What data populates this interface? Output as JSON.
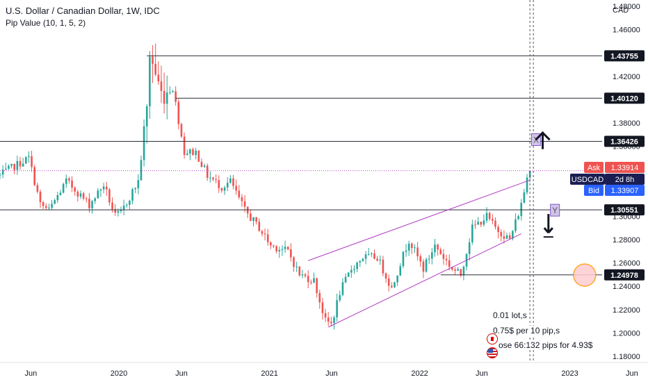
{
  "header": {
    "title": "U.S. Dollar / Canadian Dollar, 1W, IDC",
    "indicator": "Pip Value (10, 1, 5, 2)"
  },
  "currency_label": "CAD",
  "notes": {
    "lot": "0.01 lot,s",
    "per_pip": "0.75$ per 10 pip,s",
    "risk": "ose 66:132 pips for 4.93$"
  },
  "chart_data": {
    "type": "candlestick",
    "title": "U.S. Dollar / Canadian Dollar, 1W, IDC",
    "y_unit": "CAD",
    "ylim": [
      1.1708,
      1.4897
    ],
    "y_ticks": [
      1.18,
      1.2,
      1.22,
      1.24,
      1.26,
      1.28,
      1.3,
      1.32,
      1.34,
      1.36,
      1.38,
      1.4,
      1.42,
      1.44,
      1.46,
      1.48
    ],
    "y_tick_labels": [
      "1.18000",
      "1.20000",
      "1.22000",
      "1.24000",
      "1.26000",
      "1.28000",
      "1.30000",
      "1.32000",
      "1.34000",
      "1.36000",
      "1.38000",
      "1.40000",
      "1.42000",
      "1.44000",
      "1.46000",
      "1.48000"
    ],
    "x_range": [
      "2019-03-18",
      "2023-07-10"
    ],
    "x_ticks": [
      {
        "label": "Jun",
        "date": "2019-06-01"
      },
      {
        "label": "2020",
        "date": "2020-01-01"
      },
      {
        "label": "Jun",
        "date": "2020-06-01"
      },
      {
        "label": "2021",
        "date": "2021-01-01"
      },
      {
        "label": "Jun",
        "date": "2021-06-01"
      },
      {
        "label": "2022",
        "date": "2022-01-01"
      },
      {
        "label": "Jun",
        "date": "2022-06-01"
      },
      {
        "label": "2023",
        "date": "2023-01-01"
      },
      {
        "label": "Jun",
        "date": "2023-06-01"
      }
    ],
    "anchors": [
      [
        "2019-03-18",
        1.335
      ],
      [
        "2019-04-22",
        1.343
      ],
      [
        "2019-05-27",
        1.35
      ],
      [
        "2019-06-24",
        1.31
      ],
      [
        "2019-07-15",
        1.305
      ],
      [
        "2019-08-26",
        1.33
      ],
      [
        "2019-09-16",
        1.323
      ],
      [
        "2019-10-21",
        1.31
      ],
      [
        "2019-11-25",
        1.327
      ],
      [
        "2019-12-23",
        1.3
      ],
      [
        "2020-01-06",
        1.303
      ],
      [
        "2020-02-17",
        1.33
      ],
      [
        "2020-03-09",
        1.39
      ],
      [
        "2020-03-16",
        1.44
      ],
      [
        "2020-04-13",
        1.405
      ],
      [
        "2020-05-11",
        1.41
      ],
      [
        "2020-06-08",
        1.355
      ],
      [
        "2020-07-06",
        1.355
      ],
      [
        "2020-08-03",
        1.335
      ],
      [
        "2020-09-07",
        1.325
      ],
      [
        "2020-09-28",
        1.33
      ],
      [
        "2020-11-02",
        1.305
      ],
      [
        "2020-12-07",
        1.29
      ],
      [
        "2021-01-04",
        1.275
      ],
      [
        "2021-02-15",
        1.27
      ],
      [
        "2021-03-15",
        1.25
      ],
      [
        "2021-04-19",
        1.245
      ],
      [
        "2021-05-17",
        1.21
      ],
      [
        "2021-06-01",
        1.208
      ],
      [
        "2021-06-21",
        1.235
      ],
      [
        "2021-07-19",
        1.255
      ],
      [
        "2021-08-16",
        1.265
      ],
      [
        "2021-09-20",
        1.265
      ],
      [
        "2021-10-25",
        1.238
      ],
      [
        "2021-11-15",
        1.26
      ],
      [
        "2021-12-06",
        1.28
      ],
      [
        "2022-01-10",
        1.255
      ],
      [
        "2022-02-07",
        1.275
      ],
      [
        "2022-03-21",
        1.255
      ],
      [
        "2022-04-11",
        1.25
      ],
      [
        "2022-05-09",
        1.29
      ],
      [
        "2022-06-13",
        1.3
      ],
      [
        "2022-07-04",
        1.29
      ],
      [
        "2022-08-08",
        1.28
      ],
      [
        "2022-09-05",
        1.31
      ],
      [
        "2022-09-26",
        1.345
      ]
    ],
    "channel": [
      {
        "from": [
          "2021-04-05",
          1.262
        ],
        "to": [
          "2022-09-26",
          1.331
        ]
      },
      {
        "from": [
          "2021-05-24",
          1.205
        ],
        "to": [
          "2022-09-05",
          1.285
        ]
      }
    ],
    "horizontal_levels": [
      {
        "value": 1.43755,
        "label": "1.43755",
        "from": "2020-03-09"
      },
      {
        "value": 1.4012,
        "label": "1.40120",
        "from": "2020-05-18"
      },
      {
        "value": 1.36426,
        "label": "1.36426",
        "from": "2019-03-18"
      },
      {
        "value": 1.30551,
        "label": "1.30551",
        "from": "2019-03-18"
      },
      {
        "value": 1.24978,
        "label": "1.24978",
        "from": "2022-02-21"
      }
    ],
    "price_markers": {
      "ask": {
        "label": "Ask",
        "value": "1.33914"
      },
      "symbol": {
        "label": "USDCAD",
        "countdown": "2d 8h"
      },
      "bid": {
        "label": "Bid",
        "value": "1.33907"
      }
    },
    "annotations": [
      {
        "label": "X",
        "date": "2022-10-10",
        "value": 1.366
      },
      {
        "label": "Y",
        "date": "2022-11-25",
        "value": 1.3055
      }
    ],
    "arrows": [
      {
        "direction": "up",
        "date": "2022-10-27",
        "value": 1.365
      },
      {
        "direction": "down",
        "date": "2022-11-10",
        "value": 1.293
      }
    ],
    "target_circle": {
      "date": "2023-02-06",
      "value": 1.2496
    },
    "current_price": 1.33907,
    "cursor_date": "2022-09-26",
    "colors": {
      "up": "#26a69a",
      "down": "#ef5350",
      "channel": "#b23bc4",
      "level": "#2a2e39",
      "ask": "#ef5350",
      "bid": "#2962ff",
      "symbol": "#1a1e52",
      "dotted": "#b23bc4",
      "circle": "#f7a399"
    }
  }
}
